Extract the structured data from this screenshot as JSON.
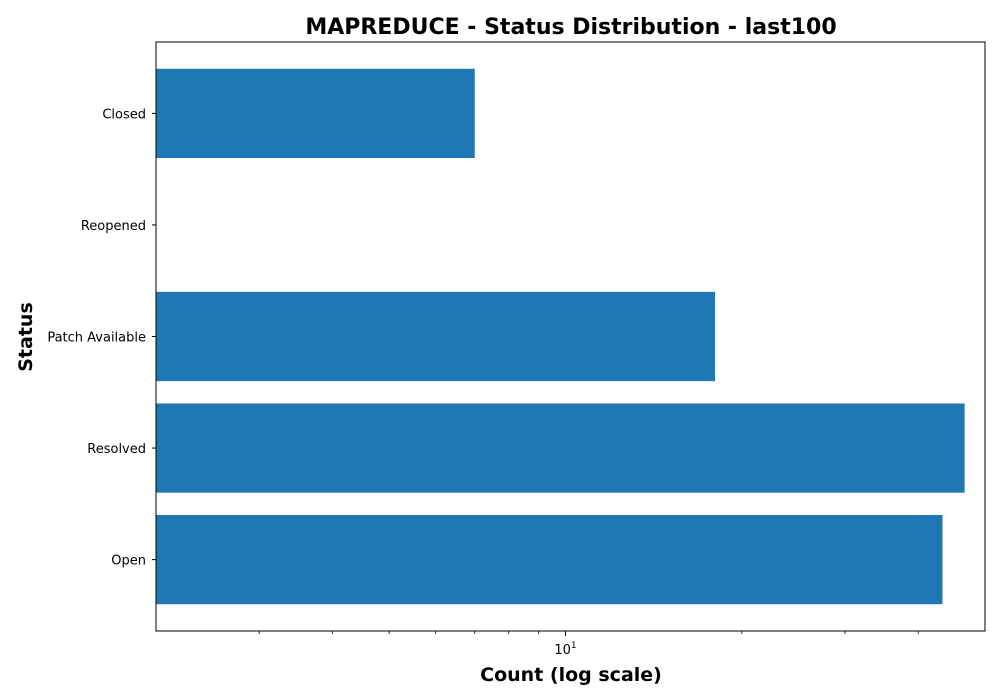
{
  "chart_data": {
    "type": "bar",
    "orientation": "horizontal",
    "title": "MAPREDUCE - Status Distribution - last100",
    "xlabel": "Count (log scale)",
    "ylabel": "Status",
    "x_scale": "log",
    "xlim": [
      2,
      52
    ],
    "categories": [
      "Closed",
      "Reopened",
      "Patch Available",
      "Resolved",
      "Open"
    ],
    "values": [
      7,
      2,
      18,
      48,
      44
    ],
    "x_major_ticks": [
      10
    ],
    "x_major_tick_labels": [
      "10^1"
    ],
    "x_minor_ticks": [
      3,
      4,
      5,
      6,
      7,
      8,
      9,
      20,
      30,
      40
    ],
    "grid": false,
    "legend": "none",
    "colors": {
      "bar": "#1f77b4",
      "axis": "#000000",
      "background": "#ffffff"
    }
  }
}
